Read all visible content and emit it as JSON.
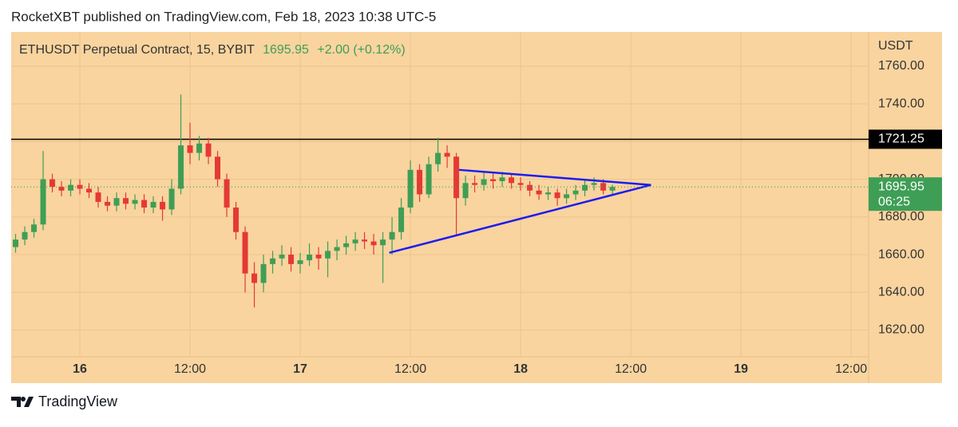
{
  "header": {
    "text": "RocketXBT published on TradingView.com, Feb 18, 2023 10:38 UTC-5"
  },
  "footer": {
    "brand": "TradingView"
  },
  "chart_data": {
    "type": "candlestick",
    "symbol": "ETHUSDT Perpetual Contract, 15, BYBIT",
    "change": "+2.00 (+0.12%)",
    "currency": "USDT",
    "countdown": "06:25",
    "x": [
      -7,
      -6,
      -5,
      -4,
      -3,
      -2,
      -1,
      0,
      1,
      2,
      3,
      4,
      5,
      6,
      7,
      8,
      9,
      10,
      11,
      12,
      13,
      14,
      15,
      16,
      17,
      18,
      19,
      20,
      21,
      22,
      23,
      24,
      25,
      26,
      27,
      28,
      29,
      30,
      31,
      32,
      33,
      34,
      35,
      36,
      37,
      38,
      39,
      40,
      41,
      42,
      43,
      44,
      45,
      46,
      47,
      48,
      49,
      50,
      51,
      52,
      53,
      54,
      55,
      56,
      57,
      58
    ],
    "open": [
      1664,
      1668,
      1672,
      1676,
      1700,
      1696,
      1694,
      1697,
      1695,
      1693,
      1688,
      1686,
      1690,
      1687,
      1689,
      1685,
      1688,
      1684,
      1695,
      1718,
      1714,
      1719,
      1712,
      1700,
      1685,
      1672,
      1650,
      1645,
      1655,
      1658,
      1660,
      1655,
      1657,
      1660,
      1658,
      1662,
      1664,
      1666,
      1668,
      1667,
      1665,
      1668,
      1672,
      1685,
      1705,
      1692,
      1708,
      1714,
      1712,
      1690,
      1698,
      1697,
      1700,
      1699,
      1701,
      1698,
      1697,
      1694,
      1692,
      1693,
      1690,
      1692,
      1694,
      1697,
      1698,
      1694
    ],
    "high": [
      1671,
      1675,
      1679,
      1715,
      1703,
      1699,
      1700,
      1700,
      1698,
      1696,
      1691,
      1693,
      1693,
      1692,
      1692,
      1691,
      1691,
      1700,
      1745,
      1730,
      1723,
      1722,
      1715,
      1703,
      1688,
      1675,
      1656,
      1660,
      1662,
      1665,
      1664,
      1661,
      1666,
      1664,
      1667,
      1668,
      1670,
      1672,
      1672,
      1671,
      1672,
      1680,
      1690,
      1710,
      1708,
      1712,
      1722,
      1718,
      1714,
      1702,
      1702,
      1704,
      1703,
      1704,
      1703,
      1701,
      1699,
      1697,
      1696,
      1695,
      1695,
      1697,
      1700,
      1701,
      1700,
      1697
    ],
    "low": [
      1661,
      1665,
      1669,
      1673,
      1693,
      1691,
      1691,
      1692,
      1690,
      1685,
      1683,
      1683,
      1684,
      1684,
      1682,
      1682,
      1678,
      1681,
      1692,
      1708,
      1710,
      1708,
      1696,
      1680,
      1668,
      1640,
      1632,
      1640,
      1650,
      1654,
      1651,
      1650,
      1654,
      1652,
      1648,
      1657,
      1660,
      1662,
      1663,
      1660,
      1645,
      1660,
      1668,
      1682,
      1688,
      1690,
      1704,
      1706,
      1670,
      1686,
      1693,
      1694,
      1695,
      1696,
      1695,
      1694,
      1691,
      1689,
      1689,
      1686,
      1687,
      1689,
      1691,
      1694,
      1692,
      1692
    ],
    "close": [
      1668,
      1672,
      1676,
      1700,
      1696,
      1694,
      1697,
      1695,
      1693,
      1688,
      1686,
      1690,
      1687,
      1689,
      1685,
      1688,
      1684,
      1695,
      1718,
      1714,
      1719,
      1712,
      1700,
      1685,
      1672,
      1650,
      1645,
      1655,
      1658,
      1660,
      1655,
      1657,
      1660,
      1658,
      1662,
      1664,
      1666,
      1668,
      1667,
      1665,
      1668,
      1672,
      1685,
      1705,
      1692,
      1708,
      1714,
      1712,
      1690,
      1698,
      1697,
      1700,
      1699,
      1701,
      1698,
      1697,
      1694,
      1692,
      1693,
      1690,
      1692,
      1694,
      1697,
      1698,
      1694,
      1695.95
    ],
    "up_color": "#3f9e55",
    "down_color": "#e53935",
    "xlim": [
      -7.48,
      85.9
    ],
    "ylim": [
      1605.8,
      1778.2
    ],
    "xticks": [
      {
        "value": 0,
        "label": "16"
      },
      {
        "value": 12,
        "label": "12:00"
      },
      {
        "value": 24,
        "label": "17"
      },
      {
        "value": 36,
        "label": "12:00"
      },
      {
        "value": 48,
        "label": "18"
      },
      {
        "value": 60,
        "label": "12:00"
      },
      {
        "value": 72,
        "label": "19"
      },
      {
        "value": 84,
        "label": "12:00"
      }
    ],
    "yticks": [
      {
        "value": 1620,
        "label": "1620.00"
      },
      {
        "value": 1640,
        "label": "1640.00"
      },
      {
        "value": 1660,
        "label": "1660.00"
      },
      {
        "value": 1680,
        "label": "1680.00"
      },
      {
        "value": 1700,
        "label": "1700.00"
      },
      {
        "value": 1720,
        "label": "1720.00"
      },
      {
        "value": 1740,
        "label": "1740.00"
      },
      {
        "value": 1760,
        "label": "1760.00"
      }
    ],
    "grid": true,
    "hline": {
      "value": 1721.25,
      "color": "#000000"
    },
    "trendline_color": "#1c1cf0",
    "trendlines": [
      {
        "x": [
          41.3,
          62.2
        ],
        "y": [
          1705,
          1697
        ]
      },
      {
        "x": [
          33.7,
          62.2
        ],
        "y": [
          1661,
          1697
        ]
      }
    ]
  }
}
